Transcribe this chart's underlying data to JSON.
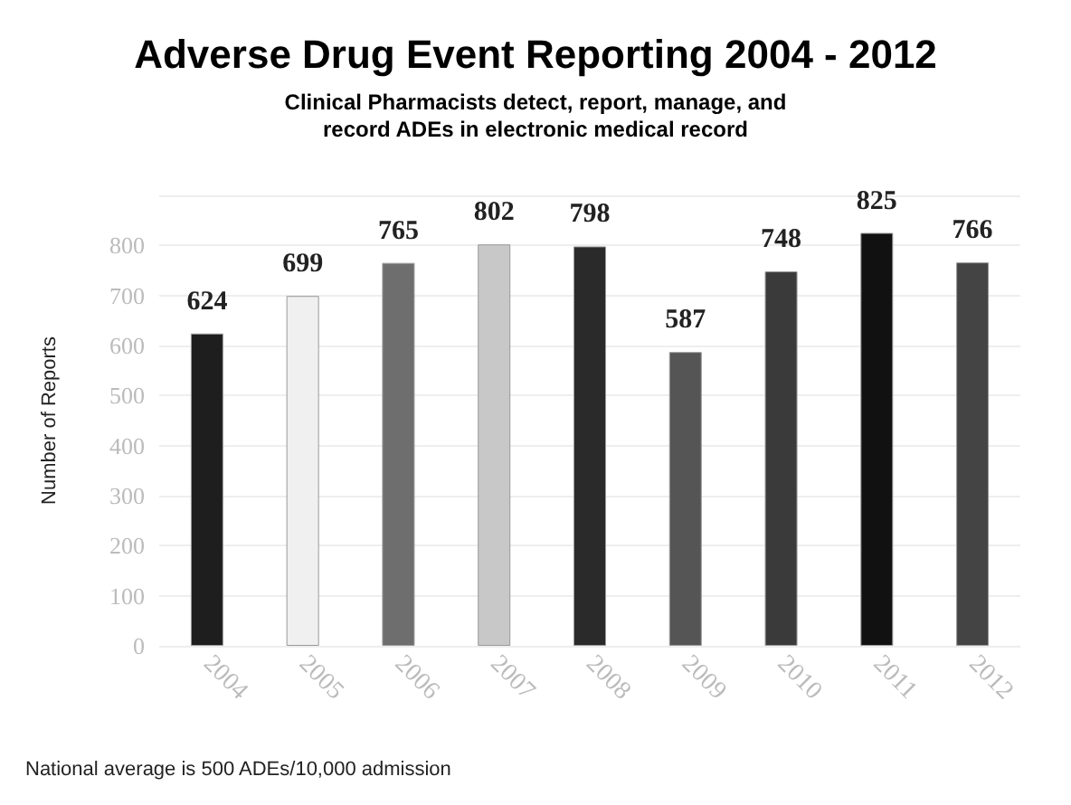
{
  "chart_data": {
    "type": "bar",
    "title": "Adverse Drug Event Reporting 2004 - 2012",
    "subtitle": "Clinical Pharmacists detect, report, manage, and\nrecord ADEs in electronic medical record",
    "ylabel": "Number of Reports",
    "categories": [
      "2004",
      "2005",
      "2006",
      "2007",
      "2008",
      "2009",
      "2010",
      "2011",
      "2012"
    ],
    "values": [
      624,
      699,
      765,
      802,
      798,
      587,
      748,
      825,
      766
    ],
    "colors": [
      "#1e1e1e",
      "#f0f0f0",
      "#6e6e6e",
      "#c8c8c8",
      "#2a2a2a",
      "#555555",
      "#3a3a3a",
      "#111111",
      "#444444"
    ],
    "data_labels": true,
    "ylim": [
      0,
      900
    ],
    "yticks": [
      0,
      100,
      200,
      300,
      400,
      500,
      600,
      700,
      800,
      {
        "value": 900,
        "label": null
      }
    ],
    "grid": "y",
    "annotations": [
      "National average is 500 ADEs/10,000 admission"
    ]
  }
}
